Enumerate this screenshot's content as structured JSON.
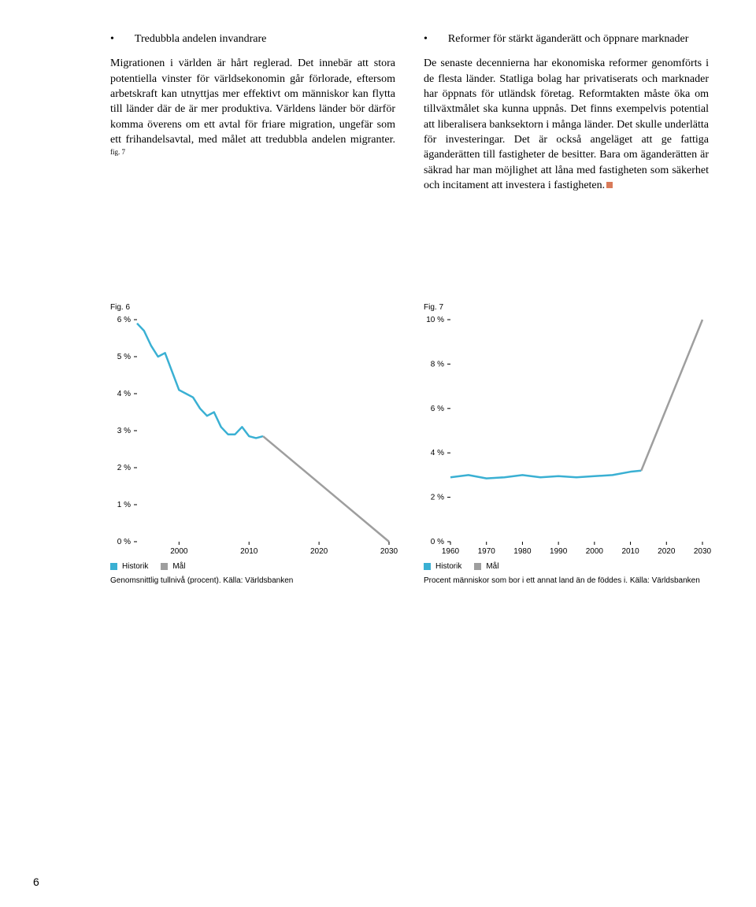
{
  "left": {
    "bullet": "Tredubbla andelen invandrare",
    "para": "Migrationen i världen är hårt reglerad. Det innebär att stora potentiella vinster för världsekonomin går förlorade, eftersom arbetskraft kan utnyttjas mer effektivt om människor kan flytta till länder där de är mer produktiva. Världens länder bör därför komma överens om ett avtal för friare migration, ungefär som ett frihandelsavtal, med målet att tredubbla andelen migranter. ",
    "sup": "fig. 7"
  },
  "right": {
    "bullet": "Reformer för stärkt äganderätt och öppnare marknader",
    "para": "De senaste decennierna har ekonomiska reformer genomförts i de flesta länder. Statliga bolag har privatiserats och marknader har öppnats för utländsk företag. Reformtakten måste öka om tillväxtmålet ska kunna uppnås. Det finns exempelvis potential att liberalisera banksektorn i många länder. Det skulle underlätta för investeringar. Det är också angeläget att ge fattiga äganderätten till fastigheter de besitter. Bara om äganderätten är säkrad har man möjlighet att låna med fastigheten som säkerhet och incitament att investera i fastigheten."
  },
  "fig6": {
    "label": "Fig. 6",
    "type": "line",
    "ylim": [
      0,
      6
    ],
    "ytick_step": 1,
    "yticks": [
      "0 %",
      "1 %",
      "2 %",
      "3 %",
      "4 %",
      "5 %",
      "6 %"
    ],
    "xticks": [
      "2000",
      "2010",
      "2020",
      "2030"
    ],
    "xlim": [
      1994,
      2030
    ],
    "historik_color": "#3ab0d3",
    "mal_color": "#9e9e9e",
    "line_width": 2.5,
    "historik": [
      [
        1994,
        5.9
      ],
      [
        1995,
        5.7
      ],
      [
        1996,
        5.3
      ],
      [
        1997,
        5.0
      ],
      [
        1998,
        5.1
      ],
      [
        1999,
        4.6
      ],
      [
        2000,
        4.1
      ],
      [
        2001,
        4.0
      ],
      [
        2002,
        3.9
      ],
      [
        2003,
        3.6
      ],
      [
        2004,
        3.4
      ],
      [
        2005,
        3.5
      ],
      [
        2006,
        3.1
      ],
      [
        2007,
        2.9
      ],
      [
        2008,
        2.9
      ],
      [
        2009,
        3.1
      ],
      [
        2010,
        2.85
      ],
      [
        2011,
        2.8
      ],
      [
        2012,
        2.85
      ]
    ],
    "mal": [
      [
        2012,
        2.85
      ],
      [
        2030,
        0
      ]
    ],
    "legend_historik": "Historik",
    "legend_mal": "Mål",
    "caption": "Genomsnittlig tullnivå (procent). Källa: Världsbanken"
  },
  "fig7": {
    "label": "Fig. 7",
    "type": "line",
    "ylim": [
      0,
      10
    ],
    "ytick_step": 2,
    "yticks": [
      "0 %",
      "2 %",
      "4 %",
      "6 %",
      "8 %",
      "10 %"
    ],
    "xticks": [
      "1960",
      "1970",
      "1980",
      "1990",
      "2000",
      "2010",
      "2020",
      "2030"
    ],
    "xlim": [
      1960,
      2030
    ],
    "historik_color": "#3ab0d3",
    "mal_color": "#9e9e9e",
    "line_width": 2.5,
    "historik": [
      [
        1960,
        2.9
      ],
      [
        1965,
        3.0
      ],
      [
        1970,
        2.85
      ],
      [
        1975,
        2.9
      ],
      [
        1980,
        3.0
      ],
      [
        1985,
        2.9
      ],
      [
        1990,
        2.95
      ],
      [
        1995,
        2.9
      ],
      [
        2000,
        2.95
      ],
      [
        2005,
        3.0
      ],
      [
        2010,
        3.15
      ],
      [
        2013,
        3.2
      ]
    ],
    "mal": [
      [
        2013,
        3.2
      ],
      [
        2030,
        10
      ]
    ],
    "legend_historik": "Historik",
    "legend_mal": "Mål",
    "caption": "Procent människor som bor i ett annat land än de föddes i. Källa: Världsbanken"
  },
  "page_number": "6"
}
